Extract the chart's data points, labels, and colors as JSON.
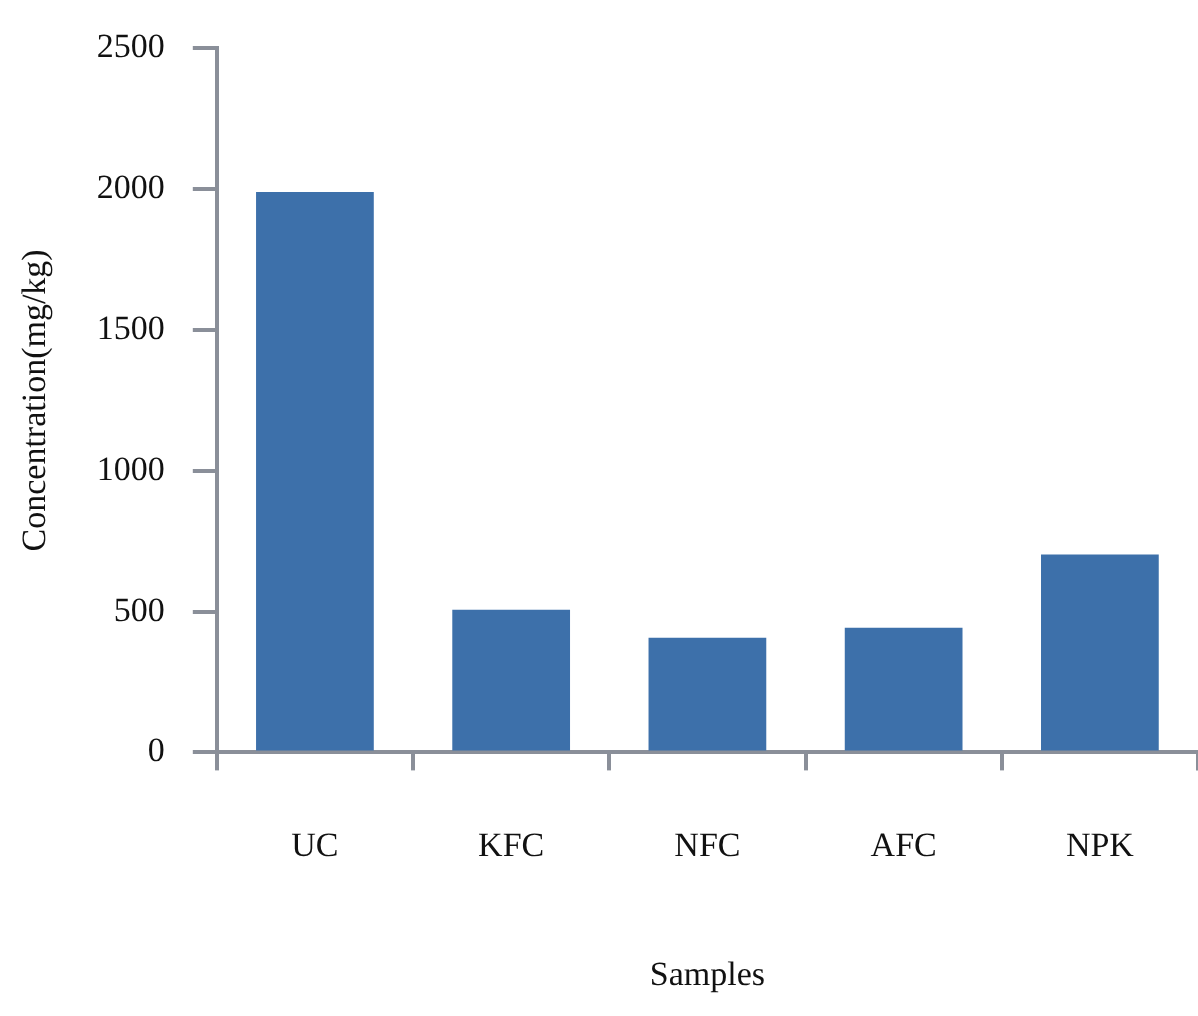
{
  "chart_data": {
    "type": "bar",
    "xlabel": "Samples",
    "ylabel": "Concentration(mg/kg)",
    "categories": [
      "UC",
      "KFC",
      "NFC",
      "AFC",
      "NPK"
    ],
    "values": [
      1990,
      507,
      407,
      443,
      703
    ],
    "color": "#3d70aa",
    "ylim": [
      0,
      2500
    ],
    "yticks": [
      0,
      500,
      1000,
      1500,
      2000,
      2500
    ],
    "grid": false,
    "legend": false
  }
}
